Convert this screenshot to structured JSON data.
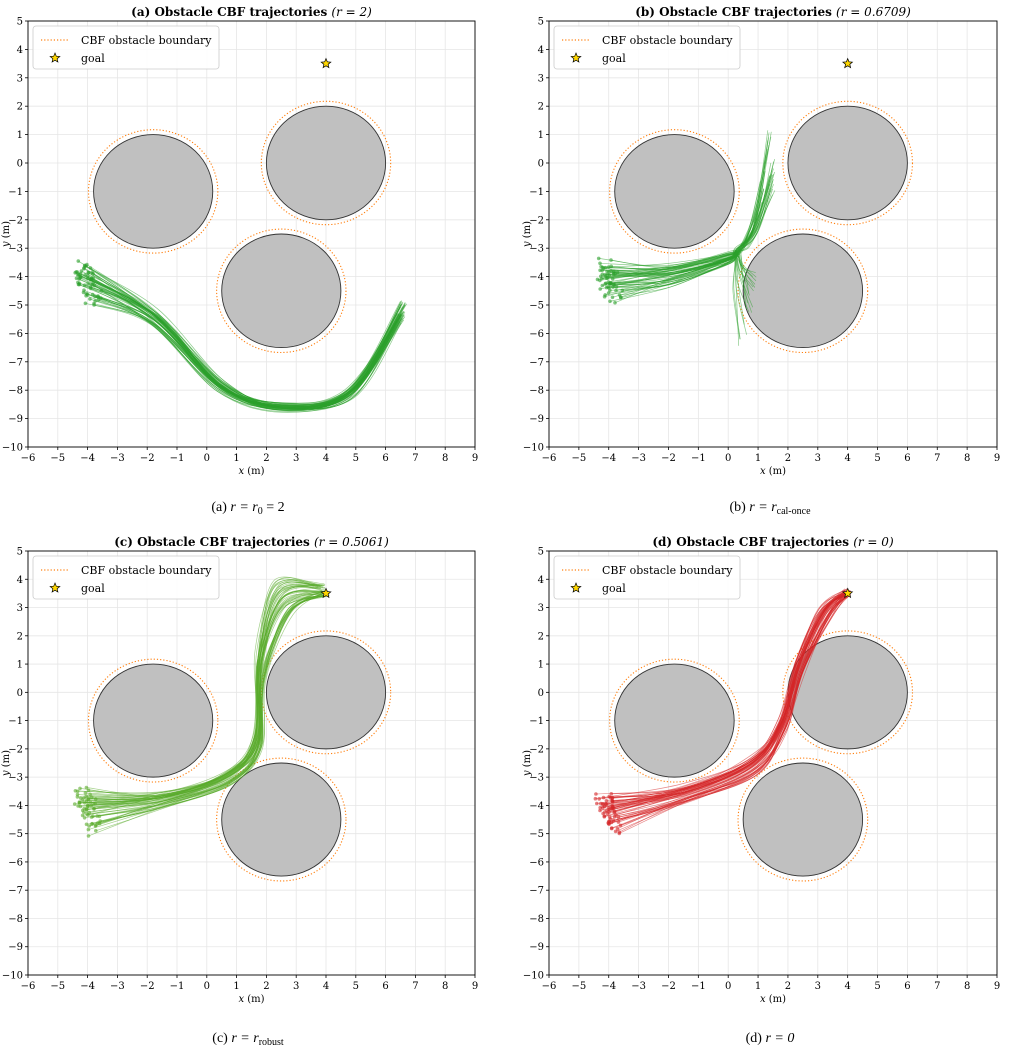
{
  "chart_data": [
    {
      "id": "a",
      "type": "line",
      "title_bold": "(a) Obstacle CBF trajectories",
      "title_param": "(r = 2)",
      "xlabel": "x (m)",
      "ylabel": "y (m)",
      "xlim": [
        -6,
        9
      ],
      "ylim": [
        -10,
        5
      ],
      "xticks": [
        -6,
        -5,
        -4,
        -3,
        -2,
        -1,
        0,
        1,
        2,
        3,
        4,
        5,
        6,
        7,
        8,
        9
      ],
      "yticks": [
        -10,
        -9,
        -8,
        -7,
        -6,
        -5,
        -4,
        -3,
        -2,
        -1,
        0,
        1,
        2,
        3,
        4,
        5
      ],
      "grid": true,
      "legend": {
        "placement": "top-left",
        "entries": [
          "CBF obstacle boundary",
          "goal"
        ]
      },
      "obstacles": [
        {
          "cx": -1.8,
          "cy": -1,
          "r": 2
        },
        {
          "cx": 4,
          "cy": 0,
          "r": 2
        },
        {
          "cx": 2.5,
          "cy": -4.5,
          "r": 2
        }
      ],
      "boundary_margin": 0.12,
      "goal": [
        4,
        3.5
      ],
      "colors": {
        "trajectory": "#2ca02c",
        "boundary": "#ff7f0e",
        "obstacle": "#c0c0c0",
        "goal": "#ffd700"
      },
      "trajectory_paths": [
        [
          [
            -4,
            -4.2
          ],
          [
            -1.7,
            -5.5
          ],
          [
            0.5,
            -7.8
          ],
          [
            2.5,
            -8.6
          ],
          [
            4.8,
            -8.1
          ],
          [
            6.6,
            -4.9
          ]
        ],
        [
          [
            -4.3,
            -3.5
          ],
          [
            -1.7,
            -5.2
          ],
          [
            0.5,
            -7.7
          ],
          [
            2.5,
            -8.5
          ],
          [
            4.7,
            -8.0
          ],
          [
            6.5,
            -5.2
          ]
        ],
        [
          [
            -3.8,
            -4.8
          ],
          [
            -1.8,
            -5.7
          ],
          [
            0.4,
            -8.0
          ],
          [
            2.5,
            -8.7
          ],
          [
            4.9,
            -8.2
          ],
          [
            6.5,
            -5.6
          ]
        ]
      ],
      "n_trajectories": 60,
      "spread": 0.2
    },
    {
      "id": "b",
      "type": "line",
      "title_bold": "(b) Obstacle CBF trajectories",
      "title_param": "(r = 0.6709)",
      "xlabel": "x (m)",
      "ylabel": "y (m)",
      "xlim": [
        -6,
        9
      ],
      "ylim": [
        -10,
        5
      ],
      "xticks": [
        -6,
        -5,
        -4,
        -3,
        -2,
        -1,
        0,
        1,
        2,
        3,
        4,
        5,
        6,
        7,
        8,
        9
      ],
      "yticks": [
        -10,
        -9,
        -8,
        -7,
        -6,
        -5,
        -4,
        -3,
        -2,
        -1,
        0,
        1,
        2,
        3,
        4,
        5
      ],
      "grid": true,
      "legend": {
        "placement": "top-left",
        "entries": [
          "CBF obstacle boundary",
          "goal"
        ]
      },
      "obstacles": [
        {
          "cx": -1.8,
          "cy": -1,
          "r": 2
        },
        {
          "cx": 4,
          "cy": 0,
          "r": 2
        },
        {
          "cx": 2.5,
          "cy": -4.5,
          "r": 2
        }
      ],
      "boundary_margin": 0.12,
      "goal": [
        4,
        3.5
      ],
      "colors": {
        "trajectory": "#2ca02c",
        "boundary": "#ff7f0e",
        "obstacle": "#c0c0c0",
        "goal": "#ffd700"
      },
      "trajectory_paths": [
        [
          [
            -4,
            -4.2
          ],
          [
            -2,
            -4.0
          ],
          [
            0,
            -3.4
          ],
          [
            0.3,
            -3.1
          ],
          [
            0.9,
            -2.6
          ],
          [
            1.5,
            -1.2
          ]
        ],
        [
          [
            -4.2,
            -3.6
          ],
          [
            -2,
            -3.6
          ],
          [
            0,
            -3.2
          ],
          [
            0.4,
            -3.0
          ],
          [
            1.0,
            -1.5
          ],
          [
            1.4,
            1.4
          ]
        ],
        [
          [
            -3.8,
            -4.7
          ],
          [
            -2,
            -4.3
          ],
          [
            0,
            -3.5
          ],
          [
            0.3,
            -3.2
          ],
          [
            0.2,
            -4.5
          ],
          [
            0.4,
            -6.5
          ]
        ]
      ],
      "n_trajectories": 60,
      "spread": 0.2
    },
    {
      "id": "c",
      "type": "line",
      "title_bold": "(c) Obstacle CBF trajectories",
      "title_param": "(r = 0.5061)",
      "xlabel": "x (m)",
      "ylabel": "y (m)",
      "xlim": [
        -6,
        9
      ],
      "ylim": [
        -10,
        5
      ],
      "xticks": [
        -6,
        -5,
        -4,
        -3,
        -2,
        -1,
        0,
        1,
        2,
        3,
        4,
        5,
        6,
        7,
        8,
        9
      ],
      "yticks": [
        -10,
        -9,
        -8,
        -7,
        -6,
        -5,
        -4,
        -3,
        -2,
        -1,
        0,
        1,
        2,
        3,
        4,
        5
      ],
      "grid": true,
      "legend": {
        "placement": "top-left",
        "entries": [
          "CBF obstacle boundary",
          "goal"
        ]
      },
      "obstacles": [
        {
          "cx": -1.8,
          "cy": -1,
          "r": 2
        },
        {
          "cx": 4,
          "cy": 0,
          "r": 2
        },
        {
          "cx": 2.5,
          "cy": -4.5,
          "r": 2
        }
      ],
      "boundary_margin": 0.12,
      "goal": [
        4,
        3.5
      ],
      "colors": {
        "trajectory": "#5aab2c",
        "boundary": "#ff7f0e",
        "obstacle": "#c0c0c0",
        "goal": "#ffd700"
      },
      "trajectory_paths": [
        [
          [
            -4,
            -4.0
          ],
          [
            -1.5,
            -3.8
          ],
          [
            0.7,
            -3.0
          ],
          [
            1.7,
            -1.8
          ],
          [
            1.8,
            0.8
          ],
          [
            2.6,
            3.0
          ],
          [
            4,
            3.5
          ]
        ],
        [
          [
            -4.2,
            -3.5
          ],
          [
            -1.5,
            -3.5
          ],
          [
            0.6,
            -2.8
          ],
          [
            1.6,
            -1.5
          ],
          [
            1.7,
            1.5
          ],
          [
            2.3,
            3.9
          ],
          [
            3.8,
            3.8
          ]
        ],
        [
          [
            -3.8,
            -4.8
          ],
          [
            -1.5,
            -4.1
          ],
          [
            0.8,
            -3.2
          ],
          [
            1.8,
            -2.0
          ],
          [
            1.9,
            0.4
          ],
          [
            2.8,
            2.8
          ],
          [
            4,
            3.5
          ]
        ]
      ],
      "n_trajectories": 60,
      "spread": 0.2
    },
    {
      "id": "d",
      "type": "line",
      "title_bold": "(d) Obstacle CBF trajectories",
      "title_param": "(r = 0)",
      "xlabel": "x (m)",
      "ylabel": "y (m)",
      "xlim": [
        -6,
        9
      ],
      "ylim": [
        -10,
        5
      ],
      "xticks": [
        -6,
        -5,
        -4,
        -3,
        -2,
        -1,
        0,
        1,
        2,
        3,
        4,
        5,
        6,
        7,
        8,
        9
      ],
      "yticks": [
        -10,
        -9,
        -8,
        -7,
        -6,
        -5,
        -4,
        -3,
        -2,
        -1,
        0,
        1,
        2,
        3,
        4,
        5
      ],
      "grid": true,
      "legend": {
        "placement": "top-left",
        "entries": [
          "CBF obstacle boundary",
          "goal"
        ]
      },
      "obstacles": [
        {
          "cx": -1.8,
          "cy": -1,
          "r": 2
        },
        {
          "cx": 4,
          "cy": 0,
          "r": 2
        },
        {
          "cx": 2.5,
          "cy": -4.5,
          "r": 2
        }
      ],
      "boundary_margin": 0.12,
      "goal": [
        4,
        3.5
      ],
      "colors": {
        "trajectory": "#d62728",
        "boundary": "#ff7f0e",
        "obstacle": "#c0c0c0",
        "goal": "#ffd700"
      },
      "trajectory_paths": [
        [
          [
            -4,
            -4.2
          ],
          [
            -1.5,
            -3.6
          ],
          [
            0.8,
            -2.6
          ],
          [
            1.8,
            -1.2
          ],
          [
            2.4,
            0.9
          ],
          [
            3.3,
            2.8
          ],
          [
            4,
            3.5
          ]
        ],
        [
          [
            -4.2,
            -3.6
          ],
          [
            -1.5,
            -3.3
          ],
          [
            0.7,
            -2.3
          ],
          [
            1.7,
            -1.0
          ],
          [
            2.3,
            1.2
          ],
          [
            3.1,
            3.0
          ],
          [
            4,
            3.6
          ]
        ],
        [
          [
            -3.8,
            -4.8
          ],
          [
            -1.5,
            -3.9
          ],
          [
            0.9,
            -2.9
          ],
          [
            1.9,
            -1.4
          ],
          [
            2.5,
            0.7
          ],
          [
            3.4,
            2.7
          ],
          [
            4,
            3.5
          ]
        ]
      ],
      "n_trajectories": 60,
      "spread": 0.18
    }
  ],
  "captions": [
    {
      "prefix": "(a) ",
      "text": "r = r",
      "sub": "0",
      "suffix": " = 2"
    },
    {
      "prefix": "(b) ",
      "text": "r = r",
      "sub": "cal-once",
      "suffix": ""
    },
    {
      "prefix": "(c) ",
      "text": "r = r",
      "sub": "robust",
      "suffix": ""
    },
    {
      "prefix": "(d) ",
      "text": "r = 0",
      "sub": "",
      "suffix": ""
    }
  ]
}
